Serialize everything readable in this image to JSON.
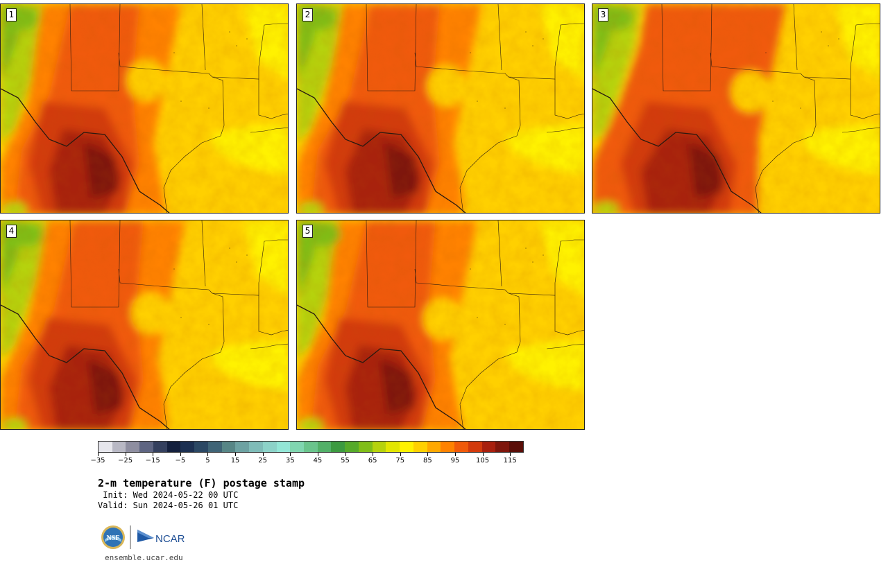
{
  "panels": [
    {
      "label": "1",
      "variant": 0
    },
    {
      "label": "2",
      "variant": 1
    },
    {
      "label": "3",
      "variant": 2
    },
    {
      "label": "4",
      "variant": 3
    },
    {
      "label": "5",
      "variant": 4
    }
  ],
  "colorbar": {
    "colors": [
      "#e6e6ec",
      "#b8b8c4",
      "#8e8ea0",
      "#5e6582",
      "#34405e",
      "#14203d",
      "#1c3052",
      "#2b4864",
      "#3f6476",
      "#578686",
      "#6da2a2",
      "#7fbcb8",
      "#8cd2c8",
      "#93e6d6",
      "#80d6b0",
      "#6ac48c",
      "#52b068",
      "#3c9a40",
      "#56aa2a",
      "#80be18",
      "#b6d20c",
      "#e2e600",
      "#fff200",
      "#ffd000",
      "#ffa800",
      "#ff8200",
      "#f05a0a",
      "#d23a0c",
      "#a8200e",
      "#7e160c",
      "#5a0e08"
    ],
    "tick_values": [
      "−35",
      "−25",
      "−15",
      "−5",
      "5",
      "15",
      "25",
      "35",
      "45",
      "55",
      "65",
      "75",
      "85",
      "95",
      "105",
      "115"
    ]
  },
  "title": "2-m temperature (F) postage stamp",
  "init_text": " Init: Wed 2024-05-22 00 UTC",
  "valid_text": "Valid: Sun 2024-05-26 01 UTC",
  "logos": {
    "nsf": "NSF",
    "ncar": "NCAR"
  },
  "url": "ensemble.ucar.edu"
}
